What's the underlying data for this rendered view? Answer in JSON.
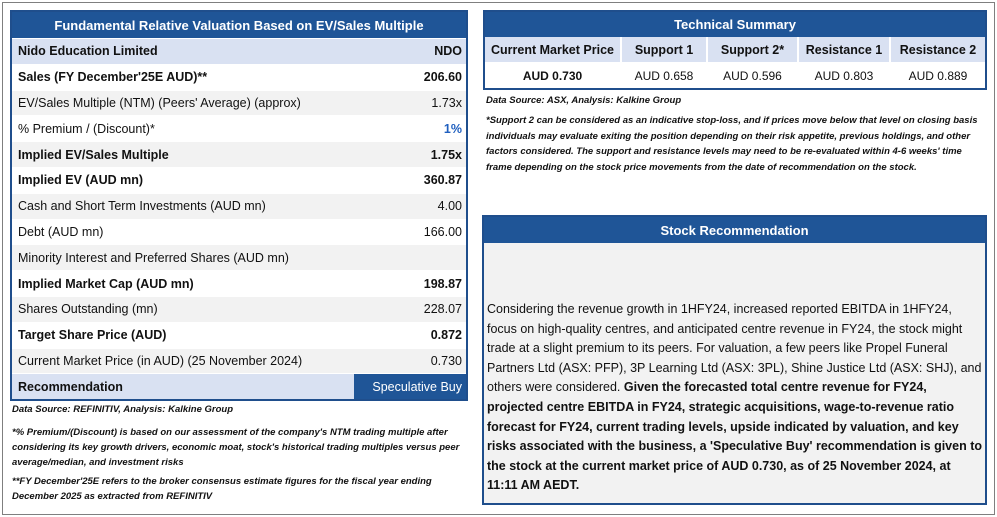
{
  "valuation": {
    "title": "Fundamental Relative Valuation Based on EV/Sales Multiple",
    "rows": [
      {
        "label": "Nido Education Limited",
        "value": "NDO"
      },
      {
        "label": "Sales (FY December'25E AUD)**",
        "value": "206.60"
      },
      {
        "label": "EV/Sales Multiple (NTM)  (Peers' Average) (approx)",
        "value": "1.73x"
      },
      {
        "label": "% Premium / (Discount)*",
        "value": "1%"
      },
      {
        "label": "Implied EV/Sales Multiple",
        "value": "1.75x"
      },
      {
        "label": "Implied EV (AUD mn)",
        "value": "360.87"
      },
      {
        "label": "Cash and Short Term Investments (AUD mn)",
        "value": "4.00"
      },
      {
        "label": "Debt (AUD mn)",
        "value": "166.00"
      },
      {
        "label": "Minority Interest and Preferred Shares (AUD mn)",
        "value": ""
      },
      {
        "label": "Implied Market Cap (AUD mn)",
        "value": "198.87"
      },
      {
        "label": "Shares Outstanding (mn)",
        "value": "228.07"
      },
      {
        "label": "Target Share Price (AUD)",
        "value": "0.872"
      },
      {
        "label": "Current Market Price (in AUD) (25 November 2024)",
        "value": "0.730"
      },
      {
        "label": "Recommendation",
        "value": "Speculative Buy"
      }
    ],
    "source": "Data Source: REFINITIV, Analysis: Kalkine Group",
    "note1": "*% Premium/(Discount) is based on our assessment of the company's NTM trading multiple after considering its key growth drivers, economic moat, stock's historical trading multiples versus peer average/median, and investment risks",
    "note2": "**FY December'25E refers to the broker consensus estimate figures for the fiscal year ending December 2025  as extracted from REFINITIV"
  },
  "technical": {
    "title": "Technical Summary",
    "headers": [
      "Current Market Price",
      "Support 1",
      "Support 2*",
      "Resistance 1",
      "Resistance 2"
    ],
    "values": [
      "AUD 0.730",
      "AUD 0.658",
      "AUD 0.596",
      "AUD 0.803",
      "AUD 0.889"
    ],
    "source": "Data Source: ASX, Analysis: Kalkine Group",
    "note": "*Support 2 can be considered as an indicative stop-loss, and if prices move below that level on closing basis individuals may evaluate exiting the position depending on their risk appetite, previous holdings, and other factors considered. The support and resistance levels may need to be re-evaluated within 4-6 weeks' time frame depending on the stock price movements from the date of recommendation on the stock."
  },
  "stock_recommendation": {
    "title": "Stock Recommendation",
    "text_plain": "Considering the revenue growth in 1HFY24, increased reported EBITDA in 1HFY24, focus on high-quality centres, and anticipated centre revenue in FY24, the stock might trade at a slight premium to its peers. For valuation, a few peers like Propel Funeral Partners Ltd (ASX: PFP), 3P Learning Ltd (ASX: 3PL), Shine Justice Ltd (ASX: SHJ), and others were considered. ",
    "text_bold": "Given the forecasted total centre revenue for FY24, projected centre EBITDA in FY24, strategic acquisitions, wage-to-revenue ratio forecast for FY24, current trading levels, upside indicated by valuation, and key risks associated with the business, a 'Speculative Buy' recommendation is given to the stock at the current market price of AUD 0.730, as of 25 November 2024, at 11:11 AM AEDT."
  },
  "colors": {
    "header_blue": "#1f5597",
    "row_shade": "#f2f2f2",
    "company_row": "#d9e1f2",
    "premium_blue": "#1f5fbf"
  }
}
